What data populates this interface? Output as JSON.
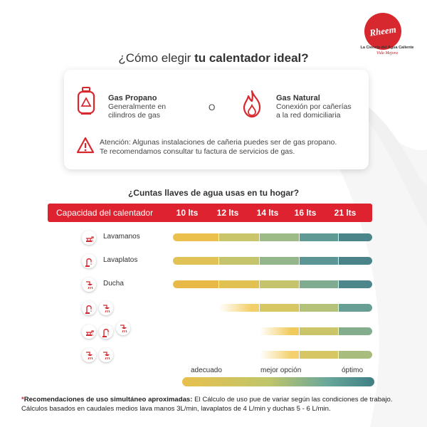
{
  "brand": {
    "logo_text": "Rheem",
    "tagline_1": "La Ciencia del Agua Caliente",
    "tagline_2": "Vida Mejora",
    "colors": {
      "red": "#de2230"
    }
  },
  "title": {
    "prefix": "¿Cómo elegir ",
    "bold": "tu calentador ideal?"
  },
  "gas_options": {
    "propano": {
      "name": "Gas Propano",
      "desc_1": "Generalmente en",
      "desc_2": "cilindros de gas",
      "icon": "gas-cylinder-icon"
    },
    "separator": "O",
    "natural": {
      "name": "Gas Natural",
      "desc_1": "Conexión por cañerías",
      "desc_2": "a la red domiciliaria",
      "icon": "flame-icon"
    }
  },
  "warning": {
    "line_1": "Atención: Algunas instalaciones de cañeria puedes ser de gas propano.",
    "line_2": "Te recomendamos consultar tu factura de servicios de gas.",
    "icon": "warning-icon"
  },
  "question": "¿Cuntas llaves de agua usas en tu hogar?",
  "table_header": {
    "capacity_label": "Capacidad del calentador",
    "columns": [
      "10 lts",
      "12 lts",
      "14 lts",
      "16 lts",
      "21 lts"
    ]
  },
  "rows": [
    {
      "label": "Lavamanos",
      "icons": [
        "faucet-icon"
      ],
      "segments": [
        "#ebc04d",
        "#c9c56b",
        "#9dbb86",
        "#5f9a95",
        "#4b8589"
      ]
    },
    {
      "label": "Lavaplatos",
      "icons": [
        "kitchen-tap-icon"
      ],
      "segments": [
        "#e1c256",
        "#c4c46c",
        "#93b78a",
        "#5b9594",
        "#4a8488"
      ]
    },
    {
      "label": "Ducha",
      "icons": [
        "shower-icon"
      ],
      "segments": [
        "#e9b948",
        "#e1c151",
        "#c5c46c",
        "#7fab90",
        "#4d878b"
      ]
    },
    {
      "label": "",
      "icons": [
        "kitchen-tap-icon",
        "shower-icon"
      ],
      "segments": [
        "#ffffff",
        "#f3cf6a",
        "#d6c763",
        "#b4c178",
        "#679f94"
      ]
    },
    {
      "label": "",
      "icons": [
        "faucet-icon",
        "kitchen-tap-icon",
        "shower-icon"
      ],
      "segments": [
        "#ffffff",
        "#ffffff",
        "#f1ca5c",
        "#cbc56a",
        "#84ad8e"
      ]
    },
    {
      "label": "",
      "icons": [
        "shower-icon",
        "shower-icon"
      ],
      "segments": [
        "#ffffff",
        "#ffffff",
        "#f4d16e",
        "#d6c764",
        "#a8bd7d"
      ]
    }
  ],
  "legend": {
    "low": "adecuado",
    "mid": "mejor opción",
    "high": "óptimo"
  },
  "note": {
    "star": "*",
    "bold": "Recomendaciones de uso simultáneo aproximadas:",
    "text": " El Cálculo de uso pue de  variar según las condiciones de trabajo. Cálculos basados en caudales medios lava manos 3L/min, lavaplatos de 4 L/min y duchas 5 - 6 L/min."
  }
}
